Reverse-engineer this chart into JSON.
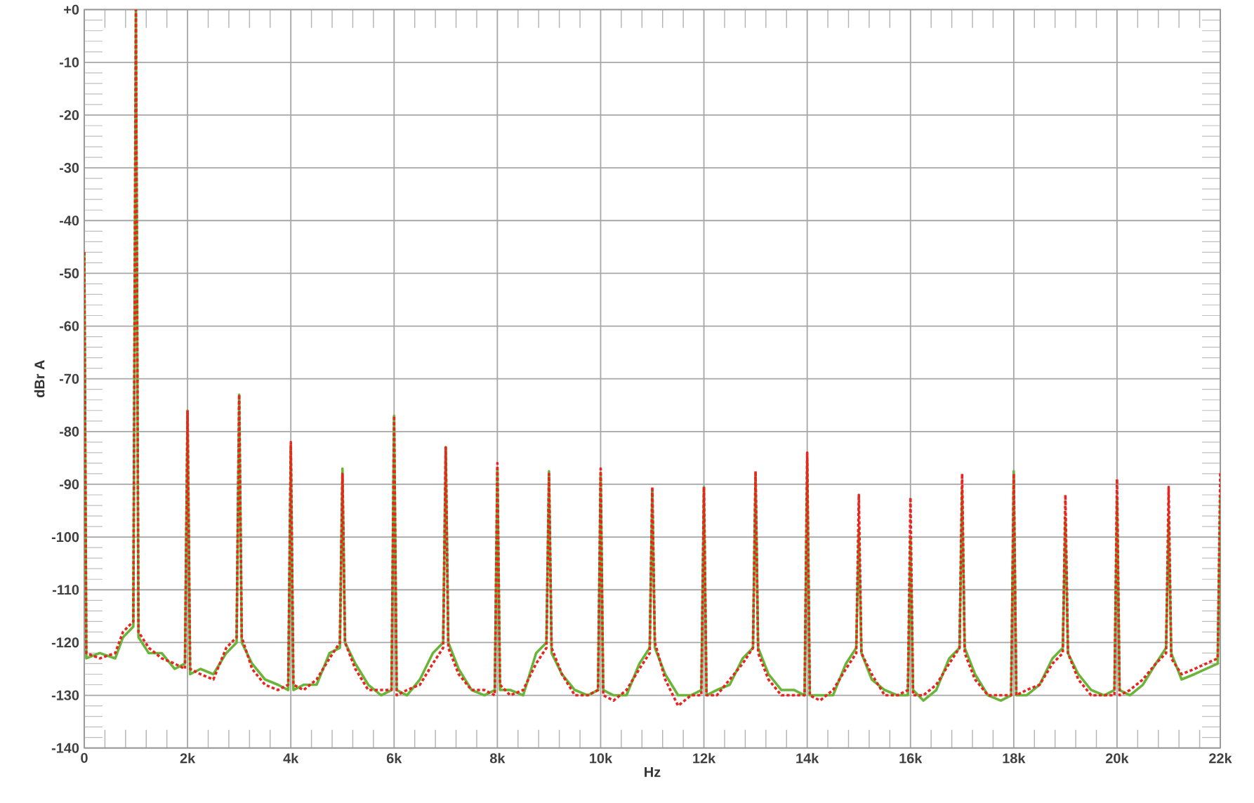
{
  "chart_data": {
    "type": "line",
    "xlabel": "Hz",
    "ylabel": "dBr A",
    "xlim": [
      0,
      22000
    ],
    "ylim": [
      -140,
      0
    ],
    "xticks": [
      0,
      {
        "value": 2000,
        "label": "2k"
      },
      {
        "value": 4000,
        "label": "4k"
      },
      {
        "value": 6000,
        "label": "6k"
      },
      {
        "value": 8000,
        "label": "8k"
      },
      {
        "value": 10000,
        "label": "10k"
      },
      {
        "value": 12000,
        "label": "12k"
      },
      {
        "value": 14000,
        "label": "14k"
      },
      {
        "value": 16000,
        "label": "16k"
      },
      {
        "value": 18000,
        "label": "18k"
      },
      {
        "value": 20000,
        "label": "20k"
      },
      {
        "value": 22000,
        "label": "22k"
      }
    ],
    "yticks": [
      {
        "value": 0,
        "label": "+0"
      },
      -10,
      -20,
      -30,
      -40,
      -50,
      -60,
      -70,
      -80,
      -90,
      -100,
      -110,
      -120,
      -130,
      -140
    ],
    "grid": true,
    "marker": "none",
    "x": [
      0,
      40,
      300,
      600,
      750,
      950,
      1000,
      1050,
      1250,
      1500,
      1750,
      1950,
      2000,
      2050,
      2250,
      2500,
      2750,
      2950,
      3000,
      3050,
      3250,
      3500,
      3750,
      3950,
      4000,
      4050,
      4250,
      4500,
      4750,
      4950,
      5000,
      5050,
      5250,
      5500,
      5750,
      5950,
      6000,
      6050,
      6250,
      6500,
      6750,
      6950,
      7000,
      7050,
      7250,
      7500,
      7750,
      7950,
      8000,
      8050,
      8250,
      8500,
      8750,
      8950,
      9000,
      9050,
      9250,
      9500,
      9750,
      9950,
      10000,
      10050,
      10250,
      10500,
      10750,
      10950,
      11000,
      11050,
      11250,
      11500,
      11750,
      11950,
      12000,
      12050,
      12250,
      12500,
      12750,
      12950,
      13000,
      13050,
      13250,
      13500,
      13750,
      13950,
      14000,
      14050,
      14250,
      14500,
      14750,
      14950,
      15000,
      15050,
      15250,
      15500,
      15750,
      15950,
      16000,
      16050,
      16250,
      16500,
      16750,
      16950,
      17000,
      17050,
      17250,
      17500,
      17750,
      17950,
      18000,
      18050,
      18250,
      18500,
      18750,
      18950,
      19000,
      19050,
      19250,
      19500,
      19750,
      19950,
      20000,
      20050,
      20250,
      20500,
      20750,
      20950,
      21000,
      21050,
      21250,
      21500,
      21950,
      22000
    ],
    "series": [
      {
        "color": "#6ab43a",
        "line_style": "solid",
        "values": [
          -46,
          -123,
          -122,
          -123,
          -119,
          -117,
          0,
          -119,
          -122,
          -122,
          -125,
          -124,
          -76,
          -126,
          -125,
          -126,
          -122,
          -120,
          -73,
          -120,
          -124,
          -127,
          -128,
          -129,
          -83,
          -129,
          -128,
          -128,
          -122,
          -121,
          -87,
          -120,
          -124,
          -128,
          -130,
          -129,
          -77,
          -129,
          -130,
          -127,
          -122,
          -120,
          -83,
          -120,
          -125,
          -129,
          -130,
          -129,
          -87,
          -129,
          -129,
          -130,
          -122,
          -120,
          -87.5,
          -122,
          -126,
          -129,
          -130,
          -129,
          -88,
          -129,
          -130,
          -130,
          -124,
          -121,
          -91,
          -121,
          -126,
          -130,
          -130,
          -129,
          -90.5,
          -130,
          -129,
          -128,
          -123,
          -121,
          -88,
          -121,
          -126,
          -129,
          -129,
          -130,
          -85.5,
          -130,
          -130,
          -130,
          -124,
          -121,
          -98.5,
          -122,
          -127,
          -129,
          -130,
          -130,
          -100,
          -129,
          -131,
          -129,
          -123,
          -121,
          -91,
          -121,
          -126,
          -130,
          -131,
          -130,
          -87.5,
          -130,
          -130,
          -128,
          -123,
          -121,
          -96.5,
          -122,
          -126,
          -129,
          -130,
          -129,
          -92.5,
          -129,
          -130,
          -128,
          -124,
          -121,
          -96.5,
          -122,
          -127,
          -126,
          -124,
          -92.5
        ]
      },
      {
        "color": "#e8251f",
        "line_style": "dashed",
        "values": [
          -46,
          -122,
          -123,
          -122,
          -118,
          -116,
          0,
          -118,
          -121,
          -123,
          -124,
          -125,
          -76,
          -125,
          -126,
          -127,
          -121,
          -119,
          -73,
          -119,
          -125,
          -128,
          -129,
          -128,
          -82,
          -128,
          -129,
          -127,
          -123,
          -120,
          -88,
          -120,
          -125,
          -129,
          -129,
          -129,
          -77,
          -130,
          -129,
          -128,
          -124,
          -121,
          -83,
          -121,
          -126,
          -129,
          -129,
          -130,
          -86,
          -128,
          -130,
          -129,
          -124,
          -121,
          -88,
          -121,
          -126,
          -130,
          -130,
          -129,
          -87,
          -130,
          -131,
          -129,
          -125,
          -122,
          -90.5,
          -120,
          -127,
          -132,
          -130,
          -130,
          -90.5,
          -130,
          -130,
          -127,
          -124,
          -121,
          -87.5,
          -122,
          -127,
          -130,
          -130,
          -130,
          -84,
          -130,
          -131,
          -129,
          -125,
          -122,
          -92,
          -122,
          -126,
          -130,
          -130,
          -129,
          -92.5,
          -130,
          -130,
          -128,
          -124,
          -121,
          -88,
          -122,
          -127,
          -130,
          -130,
          -130,
          -88,
          -130,
          -129,
          -128,
          -124,
          -122,
          -92,
          -122,
          -127,
          -130,
          -130,
          -130,
          -89,
          -130,
          -129,
          -127,
          -124,
          -122,
          -90.5,
          -123,
          -126,
          -125,
          -123,
          -87.5
        ]
      }
    ]
  }
}
